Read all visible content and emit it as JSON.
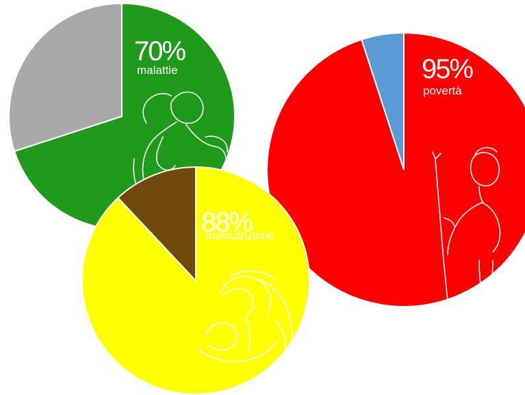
{
  "chart_data": [
    {
      "type": "pie",
      "values": [
        70,
        30
      ],
      "colors": [
        "#1f9a1a",
        "#a9a9a9"
      ],
      "value_text": "70%",
      "label": "malattie",
      "illustration": "man-holding-stomach"
    },
    {
      "type": "pie",
      "values": [
        95,
        5
      ],
      "colors": [
        "#ff0000",
        "#5b9bd5"
      ],
      "value_text": "95%",
      "label": "povertà",
      "illustration": "child-with-stick"
    },
    {
      "type": "pie",
      "values": [
        88,
        12
      ],
      "colors": [
        "#ffff00",
        "#704a0a"
      ],
      "value_text": "88%",
      "label": "malnutrizione",
      "illustration": "mother-and-child"
    }
  ]
}
